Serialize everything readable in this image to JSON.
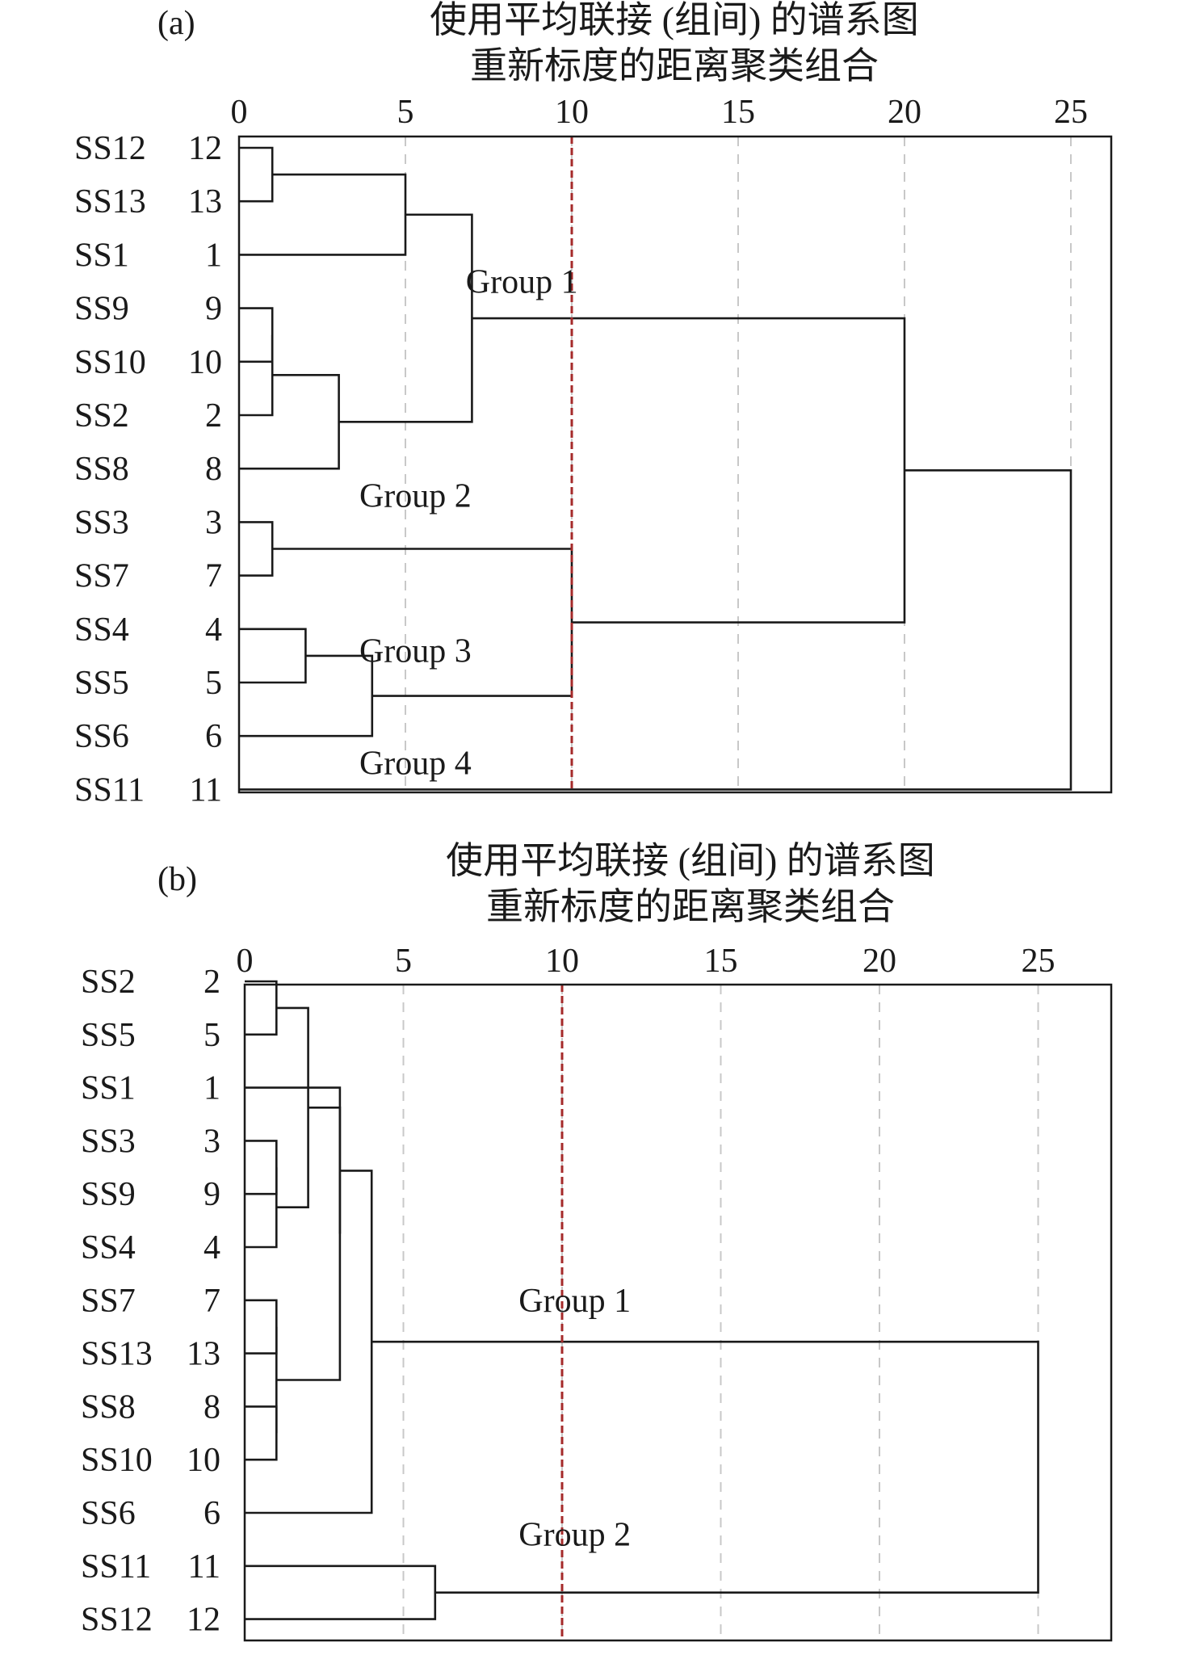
{
  "chart_data": [
    {
      "type": "dendrogram",
      "panel_label": "(a)",
      "title_line1": "使用平均联接 (组间) 的谱系图",
      "title_line2": "重新标度的距离聚类组合",
      "ticks": [
        "0",
        "5",
        "10",
        "15",
        "20",
        "25"
      ],
      "tick_values": [
        0,
        5,
        10,
        15,
        20,
        25
      ],
      "xlim": [
        0,
        26
      ],
      "cut_distance": 10,
      "leaves": [
        {
          "name": "SS12",
          "num": "12"
        },
        {
          "name": "SS13",
          "num": "13"
        },
        {
          "name": "SS1",
          "num": "1"
        },
        {
          "name": "SS9",
          "num": "9"
        },
        {
          "name": "SS10",
          "num": "10"
        },
        {
          "name": "SS2",
          "num": "2"
        },
        {
          "name": "SS8",
          "num": "8"
        },
        {
          "name": "SS3",
          "num": "3"
        },
        {
          "name": "SS7",
          "num": "7"
        },
        {
          "name": "SS4",
          "num": "4"
        },
        {
          "name": "SS5",
          "num": "5"
        },
        {
          "name": "SS6",
          "num": "6"
        },
        {
          "name": "SS11",
          "num": "11"
        }
      ],
      "merges": [
        {
          "a": "L0",
          "b": "L1",
          "d": 1
        },
        {
          "a": "M0",
          "b": "L2",
          "d": 5
        },
        {
          "a": "L3",
          "b": "L4",
          "d": 1
        },
        {
          "a": "M2",
          "b": "L5",
          "d": 1
        },
        {
          "a": "M3",
          "b": "L6",
          "d": 3
        },
        {
          "a": "M1",
          "b": "M4",
          "d": 7
        },
        {
          "a": "L7",
          "b": "L8",
          "d": 1
        },
        {
          "a": "L9",
          "b": "L10",
          "d": 2
        },
        {
          "a": "M7",
          "b": "L11",
          "d": 4
        },
        {
          "a": "M6",
          "b": "M8",
          "d": 10
        },
        {
          "a": "M5",
          "b": "M9",
          "d": 20
        },
        {
          "a": "M10",
          "b": "L12",
          "d": 25
        }
      ],
      "groups": [
        {
          "label": "Group 1",
          "anchor_x": 8.5,
          "row": 2.5
        },
        {
          "label": "Group 2",
          "anchor_x": 5.3,
          "row": 6.5
        },
        {
          "label": "Group 3",
          "anchor_x": 5.3,
          "row": 9.4
        },
        {
          "label": "Group 4",
          "anchor_x": 5.3,
          "row": 11.5
        }
      ]
    },
    {
      "type": "dendrogram",
      "panel_label": "(b)",
      "title_line1": "使用平均联接 (组间) 的谱系图",
      "title_line2": "重新标度的距离聚类组合",
      "ticks": [
        "0",
        "5",
        "10",
        "15",
        "20",
        "25"
      ],
      "tick_values": [
        0,
        5,
        10,
        15,
        20,
        25
      ],
      "xlim": [
        0,
        26
      ],
      "cut_distance": 10,
      "leaves": [
        {
          "name": "SS2",
          "num": "2"
        },
        {
          "name": "SS5",
          "num": "5"
        },
        {
          "name": "SS1",
          "num": "1"
        },
        {
          "name": "SS3",
          "num": "3"
        },
        {
          "name": "SS9",
          "num": "9"
        },
        {
          "name": "SS4",
          "num": "4"
        },
        {
          "name": "SS7",
          "num": "7"
        },
        {
          "name": "SS13",
          "num": "13"
        },
        {
          "name": "SS8",
          "num": "8"
        },
        {
          "name": "SS10",
          "num": "10"
        },
        {
          "name": "SS6",
          "num": "6"
        },
        {
          "name": "SS11",
          "num": "11"
        },
        {
          "name": "SS12",
          "num": "12"
        }
      ],
      "merges": [
        {
          "a": "L0",
          "b": "L1",
          "d": 1
        },
        {
          "a": "L3",
          "b": "L4",
          "d": 1
        },
        {
          "a": "M1",
          "b": "L5",
          "d": 1
        },
        {
          "a": "M0",
          "b": "M2",
          "d": 2
        },
        {
          "a": "L6",
          "b": "L7",
          "d": 1
        },
        {
          "a": "L8",
          "b": "L9",
          "d": 1
        },
        {
          "a": "M4",
          "b": "M5",
          "d": 1
        },
        {
          "a": "L2",
          "b": "M6",
          "d": 3
        },
        {
          "a": "M3",
          "b": "M7",
          "d": 3
        },
        {
          "a": "M8",
          "b": "L10",
          "d": 4
        },
        {
          "a": "L11",
          "b": "L12",
          "d": 6
        },
        {
          "a": "M9",
          "b": "M10",
          "d": 25
        }
      ],
      "groups": [
        {
          "label": "Group 1",
          "anchor_x": 10.4,
          "row": 6.0
        },
        {
          "label": "Group 2",
          "anchor_x": 10.4,
          "row": 10.4
        }
      ]
    }
  ],
  "colors": {
    "line": "#1a1a1a",
    "grid": "#c8c8c8",
    "cut_line": "#a52a2a",
    "background": "#ffffff"
  }
}
